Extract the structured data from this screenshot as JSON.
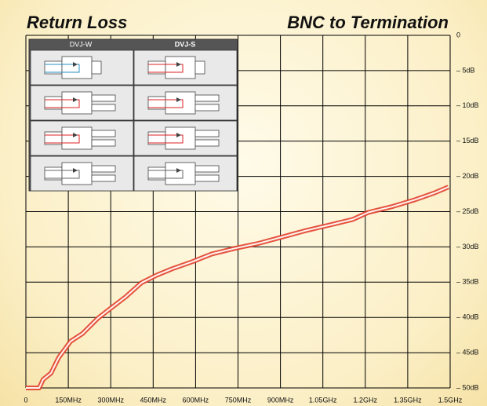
{
  "chart_data": {
    "type": "line",
    "title": "Return Loss",
    "subtitle": "BNC to Termination",
    "x": [
      0,
      47,
      61,
      89,
      116,
      158,
      200,
      255,
      297,
      352,
      408,
      463,
      518,
      588,
      657,
      740,
      823,
      906,
      989,
      1073,
      1156,
      1211,
      1294,
      1377,
      1447,
      1494
    ],
    "values": [
      -50,
      -50,
      -48.8,
      -47.9,
      -45.7,
      -43.4,
      -42.3,
      -40.1,
      -38.8,
      -37.1,
      -35.1,
      -34,
      -33.1,
      -32.1,
      -31,
      -30.2,
      -29.5,
      -28.6,
      -27.7,
      -26.9,
      -26.1,
      -25.1,
      -24.3,
      -23.3,
      -22.3,
      -21.5
    ],
    "color": "#e2412f",
    "xlim": [
      0,
      1500
    ],
    "xticks": [
      0,
      {
        "value": 150,
        "label": "150MHz"
      },
      {
        "value": 300,
        "label": "300MHz"
      },
      {
        "value": 450,
        "label": "450MHz"
      },
      {
        "value": 600,
        "label": "600MHz"
      },
      {
        "value": 750,
        "label": "750MHz"
      },
      {
        "value": 900,
        "label": "900MHz"
      },
      {
        "value": 1050,
        "label": "1.05GHz"
      },
      {
        "value": 1200,
        "label": "1.2GHz"
      },
      {
        "value": 1350,
        "label": "1.35GHz"
      },
      {
        "value": 1500,
        "label": "1.5GHz"
      }
    ],
    "ylim": [
      -50,
      0
    ],
    "yticks": [
      0,
      {
        "value": -5,
        "label": "– 5dB"
      },
      {
        "value": -10,
        "label": "– 10dB"
      },
      {
        "value": -15,
        "label": "– 15dB"
      },
      {
        "value": -20,
        "label": "– 20dB"
      },
      {
        "value": -25,
        "label": "– 25dB"
      },
      {
        "value": -30,
        "label": "– 30dB"
      },
      {
        "value": -35,
        "label": "– 35dB"
      },
      {
        "value": -40,
        "label": "– 40dB"
      },
      {
        "value": -45,
        "label": "– 45dB"
      },
      {
        "value": -50,
        "label": "– 50dB"
      }
    ],
    "grid": true,
    "inset": {
      "columns": [
        "DVJ-W",
        "DVJ-S"
      ]
    }
  }
}
